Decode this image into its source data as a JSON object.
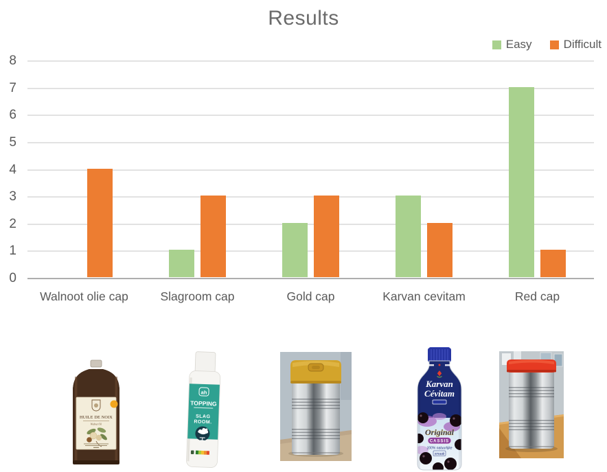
{
  "chart_data": {
    "type": "bar",
    "title": "Results",
    "categories": [
      "Walnoot olie cap",
      "Slagroom cap",
      "Gold cap",
      "Karvan cevitam",
      "Red cap"
    ],
    "series": [
      {
        "name": "Easy",
        "color": "#a9d18e",
        "values": [
          0,
          1,
          2,
          3,
          7
        ]
      },
      {
        "name": "Difficult",
        "color": "#ed7d31",
        "values": [
          4,
          3,
          3,
          2,
          1
        ]
      }
    ],
    "xlabel": "",
    "ylabel": "",
    "ylim": [
      0,
      8
    ],
    "yticks": [
      0,
      1,
      2,
      3,
      4,
      5,
      6,
      7,
      8
    ],
    "grid": "horizontal",
    "legend_position": "top-right",
    "text_color": "#595959",
    "title_color": "#6b6b6b"
  },
  "products": [
    {
      "id": "walnoot-olie-bottle",
      "texts": {
        "title": "HUILE DE NOIX",
        "subtitle": "Walnut Oil"
      }
    },
    {
      "id": "slagroom-spray",
      "texts": {
        "brand": "ah",
        "line1": "TOPPING",
        "line2": "SLAG",
        "line3": "ROOM."
      }
    },
    {
      "id": "gold-cap-can",
      "texts": {}
    },
    {
      "id": "karvan-cevitam-bottle",
      "texts": {
        "brand1": "Karvan",
        "brand2": "Cévitam",
        "line1": "Original",
        "line2": "CASSIS",
        "line3": "100% natuurlijke",
        "line4": "smaak"
      }
    },
    {
      "id": "red-cap-can",
      "texts": {}
    }
  ]
}
